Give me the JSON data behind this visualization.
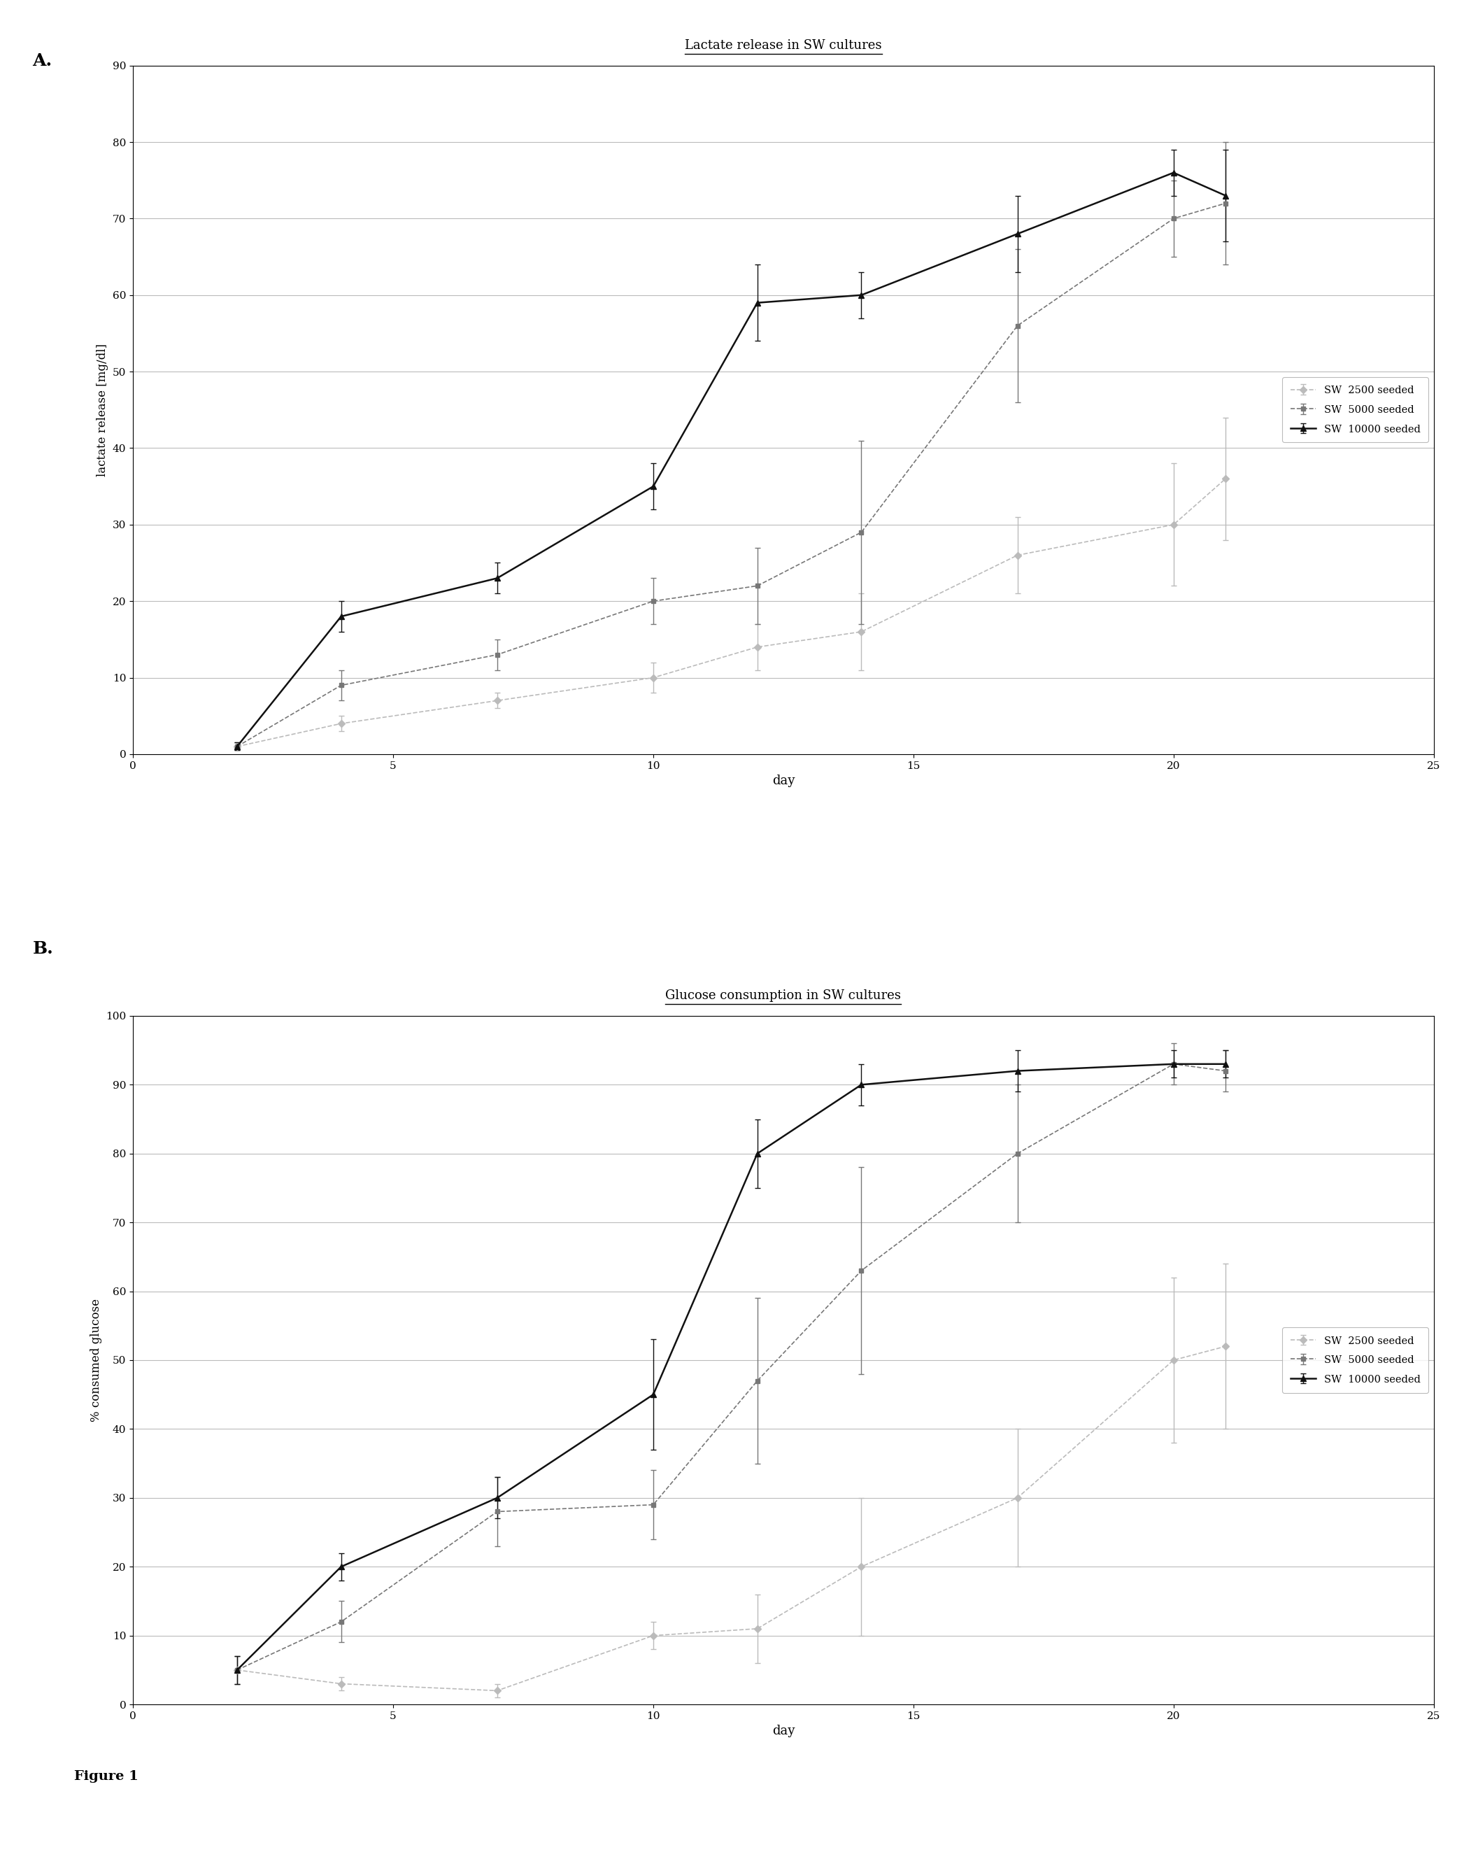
{
  "panel_A": {
    "title": "Lactate release in SW cultures",
    "xlabel": "day",
    "ylabel": "lactate release [mg/dl]",
    "ylim": [
      0,
      90
    ],
    "yticks": [
      0,
      10,
      20,
      30,
      40,
      50,
      60,
      70,
      80,
      90
    ],
    "xlim": [
      0,
      25
    ],
    "xticks": [
      0,
      5,
      10,
      15,
      20,
      25
    ],
    "series": [
      {
        "label": "SW  2500 seeded",
        "color": "#bbbbbb",
        "marker": "D",
        "markersize": 5,
        "linewidth": 1.2,
        "linestyle": "--",
        "x": [
          2,
          4,
          7,
          10,
          12,
          14,
          17,
          20,
          21
        ],
        "y": [
          1,
          4,
          7,
          10,
          14,
          16,
          26,
          30,
          36
        ],
        "yerr": [
          0.5,
          1,
          1,
          2,
          3,
          5,
          5,
          8,
          8
        ]
      },
      {
        "label": "SW  5000 seeded",
        "color": "#777777",
        "marker": "s",
        "markersize": 5,
        "linewidth": 1.2,
        "linestyle": "--",
        "x": [
          2,
          4,
          7,
          10,
          12,
          14,
          17,
          20,
          21
        ],
        "y": [
          1,
          9,
          13,
          20,
          22,
          29,
          56,
          70,
          72
        ],
        "yerr": [
          0.5,
          2,
          2,
          3,
          5,
          12,
          10,
          5,
          8
        ]
      },
      {
        "label": "SW  10000 seeded",
        "color": "#111111",
        "marker": "^",
        "markersize": 6,
        "linewidth": 1.8,
        "linestyle": "-",
        "x": [
          2,
          4,
          7,
          10,
          12,
          14,
          17,
          20,
          21
        ],
        "y": [
          1,
          18,
          23,
          35,
          59,
          60,
          68,
          76,
          73
        ],
        "yerr": [
          0.5,
          2,
          2,
          3,
          5,
          3,
          5,
          3,
          6
        ]
      }
    ]
  },
  "panel_B": {
    "title": "Glucose consumption in SW cultures",
    "xlabel": "day",
    "ylabel": "% consumed glucose",
    "ylim": [
      0,
      100
    ],
    "yticks": [
      0,
      10,
      20,
      30,
      40,
      50,
      60,
      70,
      80,
      90,
      100
    ],
    "xlim": [
      0,
      25
    ],
    "xticks": [
      0,
      5,
      10,
      15,
      20,
      25
    ],
    "series": [
      {
        "label": "SW  2500 seeded",
        "color": "#bbbbbb",
        "marker": "D",
        "markersize": 5,
        "linewidth": 1.2,
        "linestyle": "--",
        "x": [
          2,
          4,
          7,
          10,
          12,
          14,
          17,
          20,
          21
        ],
        "y": [
          5,
          3,
          2,
          10,
          11,
          20,
          30,
          50,
          52
        ],
        "yerr": [
          2,
          1,
          1,
          2,
          5,
          10,
          10,
          12,
          12
        ]
      },
      {
        "label": "SW  5000 seeded",
        "color": "#777777",
        "marker": "s",
        "markersize": 5,
        "linewidth": 1.2,
        "linestyle": "--",
        "x": [
          2,
          4,
          7,
          10,
          12,
          14,
          17,
          20,
          21
        ],
        "y": [
          5,
          12,
          28,
          29,
          47,
          63,
          80,
          93,
          92
        ],
        "yerr": [
          2,
          3,
          5,
          5,
          12,
          15,
          10,
          3,
          3
        ]
      },
      {
        "label": "SW  10000 seeded",
        "color": "#111111",
        "marker": "^",
        "markersize": 6,
        "linewidth": 1.8,
        "linestyle": "-",
        "x": [
          2,
          4,
          7,
          10,
          12,
          14,
          17,
          20,
          21
        ],
        "y": [
          5,
          20,
          30,
          45,
          80,
          90,
          92,
          93,
          93
        ],
        "yerr": [
          2,
          2,
          3,
          8,
          5,
          3,
          3,
          2,
          2
        ]
      }
    ]
  },
  "figure_label": "Figure 1",
  "background_color": "#ffffff",
  "panel_label_A": "A.",
  "panel_label_B": "B."
}
